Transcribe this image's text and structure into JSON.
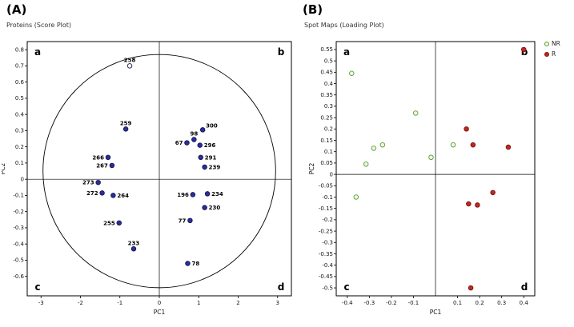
{
  "figure": {
    "background": "#ffffff",
    "legend": {
      "items": [
        {
          "label": "NR",
          "fill": "#eef6e2",
          "stroke": "#55a02e"
        },
        {
          "label": "R",
          "fill": "#c0281e",
          "stroke": "#7c1410"
        }
      ]
    }
  },
  "chart_data": [
    {
      "type": "scatter",
      "panel_label": "(A)",
      "title": "Proteins (Score Plot)",
      "xlabel": "PC1",
      "ylabel": "PC2",
      "xlim": [
        -3.35,
        3.35
      ],
      "ylim": [
        -0.72,
        0.85
      ],
      "xticks": [
        -3,
        -2,
        -1,
        0,
        1,
        2,
        3
      ],
      "yticks": [
        0.8,
        0.7,
        0.6,
        0.5,
        0.4,
        0.3,
        0.2,
        0.1,
        0,
        -0.1,
        -0.2,
        -0.3,
        -0.4,
        -0.5,
        -0.6
      ],
      "crosshair": true,
      "grid": false,
      "legend_position": "none",
      "ellipse": {
        "cx": 0,
        "cy": 0.05,
        "rx": 2.95,
        "ry": 0.72
      },
      "quadrant_labels": [
        {
          "text": "a",
          "pos": "tl"
        },
        {
          "text": "b",
          "pos": "tr"
        },
        {
          "text": "c",
          "pos": "bl"
        },
        {
          "text": "d",
          "pos": "br"
        }
      ],
      "series": [
        {
          "name": "proteins",
          "fill": "#2b2e9a",
          "stroke": "#141450",
          "points": [
            {
              "label": "258",
              "x": -0.75,
              "y": 0.7,
              "open": true,
              "anchor": "above"
            },
            {
              "label": "259",
              "x": -0.85,
              "y": 0.31,
              "anchor": "above"
            },
            {
              "label": "266",
              "x": -1.3,
              "y": 0.135,
              "anchor": "left"
            },
            {
              "label": "267",
              "x": -1.2,
              "y": 0.085,
              "anchor": "left"
            },
            {
              "label": "273",
              "x": -1.55,
              "y": -0.02,
              "anchor": "left"
            },
            {
              "label": "272",
              "x": -1.45,
              "y": -0.085,
              "anchor": "left"
            },
            {
              "label": "264",
              "x": -1.17,
              "y": -0.1,
              "anchor": "right"
            },
            {
              "label": "255",
              "x": -1.02,
              "y": -0.27,
              "anchor": "left"
            },
            {
              "label": "233",
              "x": -0.65,
              "y": -0.43,
              "anchor": "above"
            },
            {
              "label": "67",
              "x": 0.7,
              "y": 0.225,
              "anchor": "left"
            },
            {
              "label": "98",
              "x": 0.88,
              "y": 0.245,
              "anchor": "above"
            },
            {
              "label": "300",
              "x": 1.1,
              "y": 0.305,
              "anchor": "above-right"
            },
            {
              "label": "296",
              "x": 1.03,
              "y": 0.21,
              "anchor": "right"
            },
            {
              "label": "291",
              "x": 1.05,
              "y": 0.135,
              "anchor": "right"
            },
            {
              "label": "239",
              "x": 1.15,
              "y": 0.075,
              "anchor": "right"
            },
            {
              "label": "196",
              "x": 0.85,
              "y": -0.095,
              "anchor": "left"
            },
            {
              "label": "234",
              "x": 1.22,
              "y": -0.09,
              "anchor": "right"
            },
            {
              "label": "230",
              "x": 1.15,
              "y": -0.175,
              "anchor": "right"
            },
            {
              "label": "77",
              "x": 0.78,
              "y": -0.255,
              "anchor": "left"
            },
            {
              "label": "78",
              "x": 0.72,
              "y": -0.52,
              "anchor": "right"
            }
          ]
        }
      ]
    },
    {
      "type": "scatter",
      "panel_label": "(B)",
      "title": "Spot Maps (Loading Plot)",
      "xlabel": "PC1",
      "ylabel": "PC2",
      "xlim": [
        -0.45,
        0.45
      ],
      "ylim": [
        -0.535,
        0.585
      ],
      "xticks": [
        -0.4,
        -0.3,
        -0.2,
        -0.1,
        0.1,
        0.2,
        0.3,
        0.4
      ],
      "yticks": [
        0.55,
        0.5,
        0.45,
        0.4,
        0.35,
        0.3,
        0.25,
        0.2,
        0.15,
        0.1,
        0.05,
        0,
        -0.05,
        -0.1,
        -0.15,
        -0.2,
        -0.25,
        -0.3,
        -0.35,
        -0.4,
        -0.45,
        -0.5
      ],
      "crosshair": true,
      "grid": false,
      "legend_position": "right",
      "quadrant_labels": [
        {
          "text": "a",
          "pos": "tl"
        },
        {
          "text": "b",
          "pos": "tr"
        },
        {
          "text": "c",
          "pos": "bl"
        },
        {
          "text": "d",
          "pos": "br"
        }
      ],
      "series": [
        {
          "name": "NR",
          "fill": "#eef6e2",
          "stroke": "#55a02e",
          "points": [
            {
              "x": -0.38,
              "y": 0.445
            },
            {
              "x": -0.09,
              "y": 0.27
            },
            {
              "x": -0.24,
              "y": 0.13
            },
            {
              "x": -0.28,
              "y": 0.115
            },
            {
              "x": -0.315,
              "y": 0.045
            },
            {
              "x": -0.36,
              "y": -0.1
            },
            {
              "x": -0.02,
              "y": 0.075
            },
            {
              "x": 0.08,
              "y": 0.13
            }
          ]
        },
        {
          "name": "R",
          "fill": "#c0281e",
          "stroke": "#7c1410",
          "points": [
            {
              "x": 0.4,
              "y": 0.55
            },
            {
              "x": 0.14,
              "y": 0.2
            },
            {
              "x": 0.17,
              "y": 0.13
            },
            {
              "x": 0.33,
              "y": 0.12
            },
            {
              "x": 0.26,
              "y": -0.08
            },
            {
              "x": 0.15,
              "y": -0.13
            },
            {
              "x": 0.19,
              "y": -0.135
            },
            {
              "x": 0.16,
              "y": -0.5
            }
          ]
        }
      ]
    }
  ]
}
